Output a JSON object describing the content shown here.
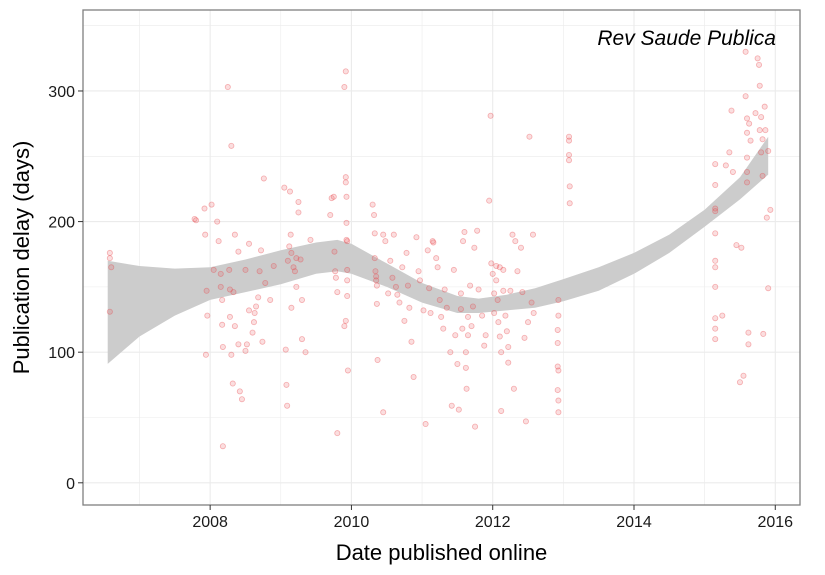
{
  "chart_data": {
    "type": "scatter",
    "title": "",
    "panel_label": "Rev Saude Publica",
    "xlabel": "Date published online",
    "ylabel": "Publication delay (days)",
    "xlim": [
      2006.2,
      2016.35
    ],
    "ylim": [
      -17,
      362
    ],
    "x_ticks": [
      2008,
      2010,
      2012,
      2014,
      2016
    ],
    "x_minor_ticks": [
      2007,
      2009,
      2011,
      2013,
      2015
    ],
    "y_ticks": [
      0,
      100,
      200,
      300
    ],
    "y_minor_ticks": [
      50,
      150,
      250,
      350
    ],
    "grid": true,
    "legend": "none",
    "colors": {
      "points": "#e8474b",
      "smooth_band": "#cccccc",
      "grid": "#ebebeb",
      "panel_border": "#7f7f7f"
    },
    "smooth_band": {
      "x": [
        2006.55,
        2007.0,
        2007.5,
        2008.0,
        2008.5,
        2009.0,
        2009.5,
        2009.8,
        2010.0,
        2010.5,
        2011.0,
        2011.5,
        2011.8,
        2012.2,
        2012.6,
        2013.0,
        2013.5,
        2014.0,
        2014.5,
        2015.0,
        2015.5,
        2015.9
      ],
      "upper": [
        170,
        166,
        164,
        165,
        171,
        178,
        184,
        186,
        183,
        168,
        153,
        143,
        141,
        144,
        149,
        156,
        165,
        176,
        190,
        209,
        234,
        265
      ],
      "lower": [
        91,
        112,
        128,
        140,
        146,
        152,
        160,
        162,
        160,
        150,
        138,
        130,
        130,
        132,
        134,
        139,
        147,
        160,
        176,
        196,
        217,
        236
      ]
    },
    "points": [
      {
        "x": 2006.58,
        "y": 176
      },
      {
        "x": 2006.58,
        "y": 172
      },
      {
        "x": 2006.6,
        "y": 165
      },
      {
        "x": 2006.58,
        "y": 131
      },
      {
        "x": 2007.78,
        "y": 202
      },
      {
        "x": 2007.8,
        "y": 201
      },
      {
        "x": 2007.92,
        "y": 210
      },
      {
        "x": 2007.93,
        "y": 190
      },
      {
        "x": 2007.95,
        "y": 147
      },
      {
        "x": 2007.96,
        "y": 128
      },
      {
        "x": 2007.94,
        "y": 98
      },
      {
        "x": 2008.02,
        "y": 213
      },
      {
        "x": 2008.05,
        "y": 163
      },
      {
        "x": 2008.1,
        "y": 200
      },
      {
        "x": 2008.12,
        "y": 185
      },
      {
        "x": 2008.15,
        "y": 160
      },
      {
        "x": 2008.15,
        "y": 150
      },
      {
        "x": 2008.17,
        "y": 140
      },
      {
        "x": 2008.17,
        "y": 121
      },
      {
        "x": 2008.18,
        "y": 104
      },
      {
        "x": 2008.18,
        "y": 28
      },
      {
        "x": 2008.25,
        "y": 303
      },
      {
        "x": 2008.27,
        "y": 163
      },
      {
        "x": 2008.28,
        "y": 148
      },
      {
        "x": 2008.28,
        "y": 127
      },
      {
        "x": 2008.3,
        "y": 258
      },
      {
        "x": 2008.3,
        "y": 98
      },
      {
        "x": 2008.32,
        "y": 76
      },
      {
        "x": 2008.33,
        "y": 146
      },
      {
        "x": 2008.35,
        "y": 190
      },
      {
        "x": 2008.35,
        "y": 120
      },
      {
        "x": 2008.4,
        "y": 177
      },
      {
        "x": 2008.4,
        "y": 106
      },
      {
        "x": 2008.42,
        "y": 70
      },
      {
        "x": 2008.45,
        "y": 64
      },
      {
        "x": 2008.5,
        "y": 163
      },
      {
        "x": 2008.5,
        "y": 101
      },
      {
        "x": 2008.52,
        "y": 106
      },
      {
        "x": 2008.55,
        "y": 132
      },
      {
        "x": 2008.55,
        "y": 183
      },
      {
        "x": 2008.6,
        "y": 115
      },
      {
        "x": 2008.62,
        "y": 123
      },
      {
        "x": 2008.63,
        "y": 130
      },
      {
        "x": 2008.65,
        "y": 135
      },
      {
        "x": 2008.68,
        "y": 142
      },
      {
        "x": 2008.7,
        "y": 162
      },
      {
        "x": 2008.72,
        "y": 178
      },
      {
        "x": 2008.74,
        "y": 108
      },
      {
        "x": 2008.76,
        "y": 233
      },
      {
        "x": 2008.78,
        "y": 153
      },
      {
        "x": 2008.85,
        "y": 140
      },
      {
        "x": 2008.9,
        "y": 166
      },
      {
        "x": 2009.05,
        "y": 226
      },
      {
        "x": 2009.07,
        "y": 102
      },
      {
        "x": 2009.08,
        "y": 75
      },
      {
        "x": 2009.09,
        "y": 59
      },
      {
        "x": 2009.1,
        "y": 170
      },
      {
        "x": 2009.12,
        "y": 181
      },
      {
        "x": 2009.13,
        "y": 223
      },
      {
        "x": 2009.14,
        "y": 190
      },
      {
        "x": 2009.15,
        "y": 176
      },
      {
        "x": 2009.15,
        "y": 134
      },
      {
        "x": 2009.18,
        "y": 165
      },
      {
        "x": 2009.2,
        "y": 162
      },
      {
        "x": 2009.22,
        "y": 150
      },
      {
        "x": 2009.22,
        "y": 172
      },
      {
        "x": 2009.25,
        "y": 215
      },
      {
        "x": 2009.25,
        "y": 207
      },
      {
        "x": 2009.28,
        "y": 171
      },
      {
        "x": 2009.3,
        "y": 140
      },
      {
        "x": 2009.3,
        "y": 110
      },
      {
        "x": 2009.35,
        "y": 100
      },
      {
        "x": 2009.42,
        "y": 186
      },
      {
        "x": 2009.7,
        "y": 205
      },
      {
        "x": 2009.72,
        "y": 218
      },
      {
        "x": 2009.75,
        "y": 219
      },
      {
        "x": 2009.76,
        "y": 177
      },
      {
        "x": 2009.77,
        "y": 162
      },
      {
        "x": 2009.78,
        "y": 157
      },
      {
        "x": 2009.8,
        "y": 146
      },
      {
        "x": 2009.8,
        "y": 38
      },
      {
        "x": 2009.92,
        "y": 315
      },
      {
        "x": 2009.9,
        "y": 303
      },
      {
        "x": 2009.92,
        "y": 234
      },
      {
        "x": 2009.92,
        "y": 230
      },
      {
        "x": 2009.93,
        "y": 219
      },
      {
        "x": 2009.93,
        "y": 199
      },
      {
        "x": 2009.93,
        "y": 186
      },
      {
        "x": 2009.94,
        "y": 185
      },
      {
        "x": 2009.94,
        "y": 163
      },
      {
        "x": 2009.94,
        "y": 155
      },
      {
        "x": 2009.94,
        "y": 143
      },
      {
        "x": 2009.92,
        "y": 124
      },
      {
        "x": 2009.9,
        "y": 120
      },
      {
        "x": 2009.95,
        "y": 86
      },
      {
        "x": 2010.3,
        "y": 213
      },
      {
        "x": 2010.32,
        "y": 205
      },
      {
        "x": 2010.33,
        "y": 191
      },
      {
        "x": 2010.33,
        "y": 172
      },
      {
        "x": 2010.34,
        "y": 162
      },
      {
        "x": 2010.35,
        "y": 158
      },
      {
        "x": 2010.35,
        "y": 155
      },
      {
        "x": 2010.36,
        "y": 151
      },
      {
        "x": 2010.36,
        "y": 137
      },
      {
        "x": 2010.37,
        "y": 94
      },
      {
        "x": 2010.45,
        "y": 190
      },
      {
        "x": 2010.45,
        "y": 54
      },
      {
        "x": 2010.48,
        "y": 185
      },
      {
        "x": 2010.52,
        "y": 145
      },
      {
        "x": 2010.55,
        "y": 170
      },
      {
        "x": 2010.58,
        "y": 157
      },
      {
        "x": 2010.6,
        "y": 190
      },
      {
        "x": 2010.63,
        "y": 150
      },
      {
        "x": 2010.65,
        "y": 144
      },
      {
        "x": 2010.68,
        "y": 138
      },
      {
        "x": 2010.72,
        "y": 165
      },
      {
        "x": 2010.75,
        "y": 124
      },
      {
        "x": 2010.78,
        "y": 176
      },
      {
        "x": 2010.8,
        "y": 151
      },
      {
        "x": 2010.82,
        "y": 134
      },
      {
        "x": 2010.85,
        "y": 108
      },
      {
        "x": 2010.88,
        "y": 81
      },
      {
        "x": 2010.92,
        "y": 188
      },
      {
        "x": 2010.95,
        "y": 162
      },
      {
        "x": 2010.97,
        "y": 155
      },
      {
        "x": 2011.02,
        "y": 132
      },
      {
        "x": 2011.05,
        "y": 45
      },
      {
        "x": 2011.08,
        "y": 178
      },
      {
        "x": 2011.1,
        "y": 149
      },
      {
        "x": 2011.12,
        "y": 130
      },
      {
        "x": 2011.15,
        "y": 185
      },
      {
        "x": 2011.16,
        "y": 184
      },
      {
        "x": 2011.2,
        "y": 172
      },
      {
        "x": 2011.22,
        "y": 165
      },
      {
        "x": 2011.25,
        "y": 140
      },
      {
        "x": 2011.27,
        "y": 127
      },
      {
        "x": 2011.3,
        "y": 118
      },
      {
        "x": 2011.32,
        "y": 148
      },
      {
        "x": 2011.35,
        "y": 134
      },
      {
        "x": 2011.4,
        "y": 100
      },
      {
        "x": 2011.42,
        "y": 59
      },
      {
        "x": 2011.45,
        "y": 163
      },
      {
        "x": 2011.47,
        "y": 113
      },
      {
        "x": 2011.5,
        "y": 91
      },
      {
        "x": 2011.52,
        "y": 56
      },
      {
        "x": 2011.55,
        "y": 145
      },
      {
        "x": 2011.55,
        "y": 133
      },
      {
        "x": 2011.57,
        "y": 118
      },
      {
        "x": 2011.58,
        "y": 185
      },
      {
        "x": 2011.6,
        "y": 192
      },
      {
        "x": 2011.62,
        "y": 100
      },
      {
        "x": 2011.62,
        "y": 88
      },
      {
        "x": 2011.63,
        "y": 72
      },
      {
        "x": 2011.65,
        "y": 127
      },
      {
        "x": 2011.65,
        "y": 113
      },
      {
        "x": 2011.68,
        "y": 151
      },
      {
        "x": 2011.7,
        "y": 120
      },
      {
        "x": 2011.72,
        "y": 135
      },
      {
        "x": 2011.74,
        "y": 180
      },
      {
        "x": 2011.75,
        "y": 43
      },
      {
        "x": 2011.78,
        "y": 193
      },
      {
        "x": 2011.8,
        "y": 148
      },
      {
        "x": 2011.85,
        "y": 128
      },
      {
        "x": 2011.88,
        "y": 105
      },
      {
        "x": 2011.9,
        "y": 113
      },
      {
        "x": 2011.95,
        "y": 216
      },
      {
        "x": 2011.97,
        "y": 281
      },
      {
        "x": 2011.98,
        "y": 168
      },
      {
        "x": 2012.0,
        "y": 160
      },
      {
        "x": 2012.02,
        "y": 145
      },
      {
        "x": 2012.02,
        "y": 130
      },
      {
        "x": 2012.05,
        "y": 166
      },
      {
        "x": 2012.05,
        "y": 155
      },
      {
        "x": 2012.07,
        "y": 140
      },
      {
        "x": 2012.08,
        "y": 123
      },
      {
        "x": 2012.1,
        "y": 165
      },
      {
        "x": 2012.1,
        "y": 112
      },
      {
        "x": 2012.12,
        "y": 100
      },
      {
        "x": 2012.12,
        "y": 55
      },
      {
        "x": 2012.15,
        "y": 163
      },
      {
        "x": 2012.15,
        "y": 147
      },
      {
        "x": 2012.18,
        "y": 128
      },
      {
        "x": 2012.2,
        "y": 116
      },
      {
        "x": 2012.22,
        "y": 104
      },
      {
        "x": 2012.22,
        "y": 92
      },
      {
        "x": 2012.25,
        "y": 147
      },
      {
        "x": 2012.28,
        "y": 190
      },
      {
        "x": 2012.3,
        "y": 72
      },
      {
        "x": 2012.32,
        "y": 185
      },
      {
        "x": 2012.35,
        "y": 162
      },
      {
        "x": 2012.4,
        "y": 180
      },
      {
        "x": 2012.42,
        "y": 146
      },
      {
        "x": 2012.45,
        "y": 111
      },
      {
        "x": 2012.47,
        "y": 47
      },
      {
        "x": 2012.5,
        "y": 123
      },
      {
        "x": 2012.52,
        "y": 265
      },
      {
        "x": 2012.55,
        "y": 138
      },
      {
        "x": 2012.57,
        "y": 190
      },
      {
        "x": 2012.58,
        "y": 130
      },
      {
        "x": 2012.93,
        "y": 140
      },
      {
        "x": 2012.93,
        "y": 128
      },
      {
        "x": 2012.92,
        "y": 117
      },
      {
        "x": 2012.92,
        "y": 107
      },
      {
        "x": 2012.92,
        "y": 89
      },
      {
        "x": 2012.93,
        "y": 86
      },
      {
        "x": 2012.92,
        "y": 71
      },
      {
        "x": 2012.93,
        "y": 63
      },
      {
        "x": 2012.93,
        "y": 54
      },
      {
        "x": 2013.08,
        "y": 265
      },
      {
        "x": 2013.08,
        "y": 262
      },
      {
        "x": 2013.08,
        "y": 251
      },
      {
        "x": 2013.08,
        "y": 247
      },
      {
        "x": 2013.09,
        "y": 227
      },
      {
        "x": 2013.09,
        "y": 214
      },
      {
        "x": 2015.15,
        "y": 244
      },
      {
        "x": 2015.15,
        "y": 228
      },
      {
        "x": 2015.15,
        "y": 210
      },
      {
        "x": 2015.15,
        "y": 208
      },
      {
        "x": 2015.15,
        "y": 191
      },
      {
        "x": 2015.15,
        "y": 170
      },
      {
        "x": 2015.15,
        "y": 165
      },
      {
        "x": 2015.15,
        "y": 150
      },
      {
        "x": 2015.15,
        "y": 126
      },
      {
        "x": 2015.15,
        "y": 118
      },
      {
        "x": 2015.15,
        "y": 110
      },
      {
        "x": 2015.25,
        "y": 128
      },
      {
        "x": 2015.3,
        "y": 243
      },
      {
        "x": 2015.35,
        "y": 253
      },
      {
        "x": 2015.38,
        "y": 285
      },
      {
        "x": 2015.4,
        "y": 238
      },
      {
        "x": 2015.45,
        "y": 182
      },
      {
        "x": 2015.5,
        "y": 77
      },
      {
        "x": 2015.52,
        "y": 180
      },
      {
        "x": 2015.55,
        "y": 82
      },
      {
        "x": 2015.58,
        "y": 330
      },
      {
        "x": 2015.58,
        "y": 296
      },
      {
        "x": 2015.6,
        "y": 279
      },
      {
        "x": 2015.6,
        "y": 268
      },
      {
        "x": 2015.6,
        "y": 249
      },
      {
        "x": 2015.6,
        "y": 238
      },
      {
        "x": 2015.6,
        "y": 230
      },
      {
        "x": 2015.62,
        "y": 115
      },
      {
        "x": 2015.62,
        "y": 106
      },
      {
        "x": 2015.63,
        "y": 275
      },
      {
        "x": 2015.65,
        "y": 262
      },
      {
        "x": 2015.72,
        "y": 283
      },
      {
        "x": 2015.75,
        "y": 325
      },
      {
        "x": 2015.77,
        "y": 320
      },
      {
        "x": 2015.78,
        "y": 304
      },
      {
        "x": 2015.78,
        "y": 270
      },
      {
        "x": 2015.8,
        "y": 280
      },
      {
        "x": 2015.8,
        "y": 253
      },
      {
        "x": 2015.82,
        "y": 263
      },
      {
        "x": 2015.82,
        "y": 235
      },
      {
        "x": 2015.83,
        "y": 114
      },
      {
        "x": 2015.85,
        "y": 288
      },
      {
        "x": 2015.86,
        "y": 270
      },
      {
        "x": 2015.88,
        "y": 203
      },
      {
        "x": 2015.9,
        "y": 254
      },
      {
        "x": 2015.9,
        "y": 149
      },
      {
        "x": 2015.93,
        "y": 209
      }
    ]
  }
}
